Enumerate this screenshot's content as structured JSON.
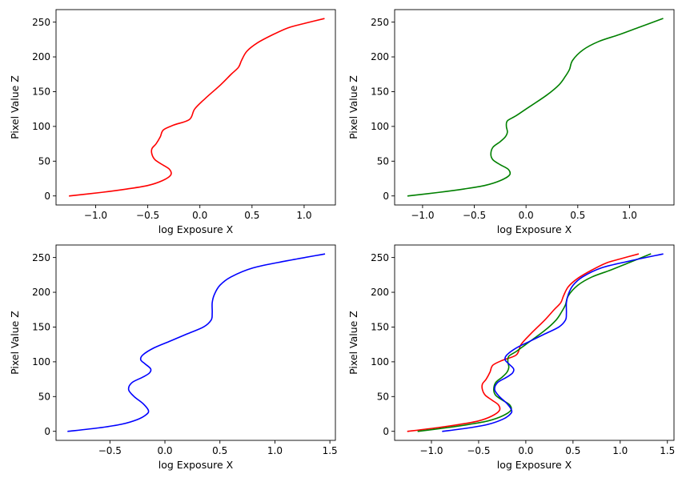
{
  "chart_data": [
    {
      "type": "line",
      "xlabel": "log Exposure X",
      "ylabel": "Pixel Value Z",
      "xlim": [
        -1.38,
        1.3
      ],
      "ylim": [
        -13,
        268
      ],
      "xticks": [
        -1.0,
        -0.5,
        0.0,
        0.5,
        1.0
      ],
      "xtick_labels": [
        "−1.0",
        "−0.5",
        "0.0",
        "0.5",
        "1.0"
      ],
      "yticks": [
        0,
        50,
        100,
        150,
        200,
        250
      ],
      "ytick_labels": [
        "0",
        "50",
        "100",
        "150",
        "200",
        "250"
      ],
      "grid": false,
      "series": [
        {
          "color": "#ff0000",
          "x": [
            -1.25,
            -0.95,
            -0.7,
            -0.5,
            -0.36,
            -0.28,
            -0.29,
            -0.36,
            -0.43,
            -0.46,
            -0.46,
            -0.42,
            -0.38,
            -0.35,
            -0.25,
            -0.1,
            -0.05,
            0.05,
            0.2,
            0.3,
            0.37,
            0.4,
            0.45,
            0.55,
            0.7,
            0.85,
            1.0,
            1.19
          ],
          "y": [
            0,
            5,
            10,
            15,
            22,
            30,
            38,
            45,
            52,
            60,
            68,
            75,
            85,
            95,
            102,
            110,
            125,
            140,
            160,
            175,
            185,
            195,
            208,
            220,
            232,
            242,
            248,
            255
          ]
        }
      ]
    },
    {
      "type": "line",
      "xlabel": "log Exposure X",
      "ylabel": "Pixel Value Z",
      "xlim": [
        -1.27,
        1.43
      ],
      "ylim": [
        -13,
        268
      ],
      "xticks": [
        -1.0,
        -0.5,
        0.0,
        0.5,
        1.0
      ],
      "xtick_labels": [
        "−1.0",
        "−0.5",
        "0.0",
        "0.5",
        "1.0"
      ],
      "yticks": [
        0,
        50,
        100,
        150,
        200,
        250
      ],
      "ytick_labels": [
        "0",
        "50",
        "100",
        "150",
        "200",
        "250"
      ],
      "grid": false,
      "series": [
        {
          "color": "#008000",
          "x": [
            -1.14,
            -0.85,
            -0.6,
            -0.4,
            -0.25,
            -0.16,
            -0.17,
            -0.25,
            -0.32,
            -0.34,
            -0.32,
            -0.25,
            -0.2,
            -0.18,
            -0.19,
            -0.18,
            -0.1,
            0.0,
            0.2,
            0.32,
            0.38,
            0.42,
            0.45,
            0.55,
            0.7,
            0.9,
            1.1,
            1.32
          ],
          "y": [
            0,
            5,
            10,
            15,
            22,
            30,
            38,
            45,
            52,
            60,
            70,
            78,
            85,
            92,
            100,
            108,
            115,
            125,
            145,
            160,
            172,
            182,
            195,
            210,
            222,
            232,
            243,
            255
          ]
        }
      ]
    },
    {
      "type": "line",
      "xlabel": "log Exposure X",
      "ylabel": "Pixel Value Z",
      "xlim": [
        -0.99,
        1.55
      ],
      "ylim": [
        -13,
        268
      ],
      "xticks": [
        -0.5,
        0.0,
        0.5,
        1.0,
        1.5
      ],
      "xtick_labels": [
        "−0.5",
        "0.0",
        "0.5",
        "1.0",
        "1.5"
      ],
      "yticks": [
        0,
        50,
        100,
        150,
        200,
        250
      ],
      "ytick_labels": [
        "0",
        "50",
        "100",
        "150",
        "200",
        "250"
      ],
      "grid": false,
      "series": [
        {
          "color": "#0000ff",
          "x": [
            -0.88,
            -0.6,
            -0.4,
            -0.25,
            -0.17,
            -0.15,
            -0.2,
            -0.28,
            -0.33,
            -0.3,
            -0.2,
            -0.14,
            -0.13,
            -0.18,
            -0.22,
            -0.2,
            -0.1,
            0.05,
            0.2,
            0.35,
            0.42,
            0.43,
            0.43,
            0.45,
            0.5,
            0.6,
            0.8,
            1.1,
            1.45
          ],
          "y": [
            0,
            5,
            10,
            17,
            24,
            30,
            40,
            50,
            60,
            70,
            78,
            84,
            90,
            97,
            103,
            110,
            120,
            130,
            140,
            150,
            160,
            170,
            185,
            197,
            210,
            222,
            235,
            245,
            255
          ]
        }
      ]
    },
    {
      "type": "line",
      "xlabel": "log Exposure X",
      "ylabel": "Pixel Value Z",
      "xlim": [
        -1.39,
        1.57
      ],
      "ylim": [
        -13,
        268
      ],
      "xticks": [
        -1.0,
        -0.5,
        0.0,
        0.5,
        1.0,
        1.5
      ],
      "xtick_labels": [
        "−1.0",
        "−0.5",
        "0.0",
        "0.5",
        "1.0",
        "1.5"
      ],
      "yticks": [
        0,
        50,
        100,
        150,
        200,
        250
      ],
      "ytick_labels": [
        "0",
        "50",
        "100",
        "150",
        "200",
        "250"
      ],
      "grid": false,
      "series": [
        {
          "color": "#ff0000",
          "x": [
            -1.25,
            -0.95,
            -0.7,
            -0.5,
            -0.36,
            -0.28,
            -0.29,
            -0.36,
            -0.43,
            -0.46,
            -0.46,
            -0.42,
            -0.38,
            -0.35,
            -0.25,
            -0.1,
            -0.05,
            0.05,
            0.2,
            0.3,
            0.37,
            0.4,
            0.45,
            0.55,
            0.7,
            0.85,
            1.0,
            1.19
          ],
          "y": [
            0,
            5,
            10,
            15,
            22,
            30,
            38,
            45,
            52,
            60,
            68,
            75,
            85,
            95,
            102,
            110,
            125,
            140,
            160,
            175,
            185,
            195,
            208,
            220,
            232,
            242,
            248,
            255
          ]
        },
        {
          "color": "#008000",
          "x": [
            -1.14,
            -0.85,
            -0.6,
            -0.4,
            -0.25,
            -0.16,
            -0.17,
            -0.25,
            -0.32,
            -0.34,
            -0.32,
            -0.25,
            -0.2,
            -0.18,
            -0.19,
            -0.18,
            -0.1,
            0.0,
            0.2,
            0.32,
            0.38,
            0.42,
            0.45,
            0.55,
            0.7,
            0.9,
            1.1,
            1.32
          ],
          "y": [
            0,
            5,
            10,
            15,
            22,
            30,
            38,
            45,
            52,
            60,
            70,
            78,
            85,
            92,
            100,
            108,
            115,
            125,
            145,
            160,
            172,
            182,
            195,
            210,
            222,
            232,
            243,
            255
          ]
        },
        {
          "color": "#0000ff",
          "x": [
            -0.88,
            -0.6,
            -0.4,
            -0.25,
            -0.17,
            -0.15,
            -0.2,
            -0.28,
            -0.33,
            -0.3,
            -0.2,
            -0.14,
            -0.13,
            -0.18,
            -0.22,
            -0.2,
            -0.1,
            0.05,
            0.2,
            0.35,
            0.42,
            0.43,
            0.43,
            0.45,
            0.5,
            0.6,
            0.8,
            1.1,
            1.45
          ],
          "y": [
            0,
            5,
            10,
            17,
            24,
            30,
            40,
            50,
            60,
            70,
            78,
            84,
            90,
            97,
            103,
            110,
            120,
            130,
            140,
            150,
            160,
            170,
            185,
            197,
            210,
            222,
            235,
            245,
            255
          ]
        }
      ]
    }
  ]
}
